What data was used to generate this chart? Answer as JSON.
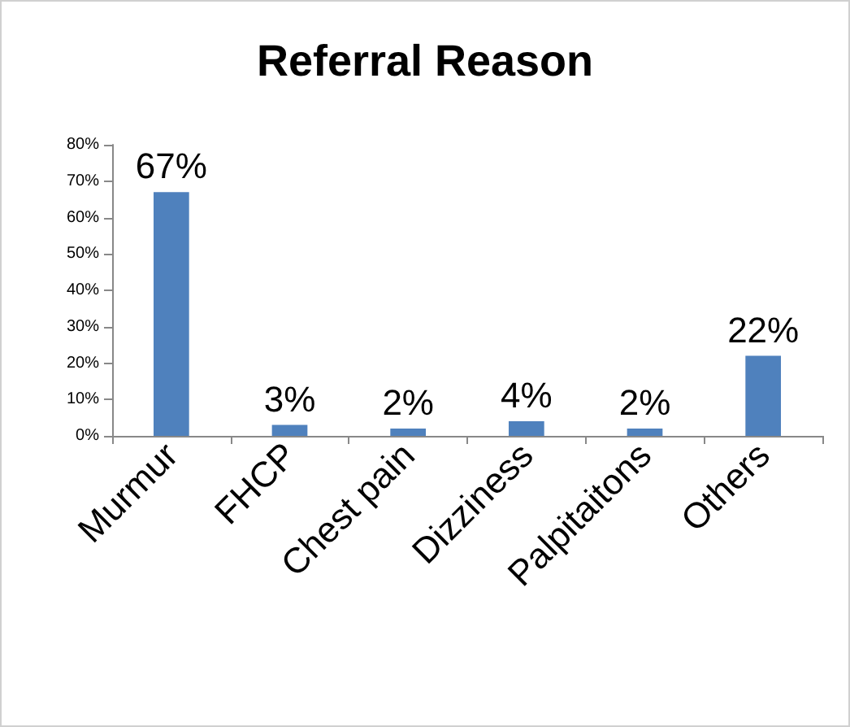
{
  "chart_data": {
    "type": "bar",
    "title": "Referral Reason",
    "categories": [
      "Murmur",
      "FHCP",
      "Chest pain",
      "Dizziness",
      "Palpitaitons",
      "Others"
    ],
    "values": [
      67,
      3,
      2,
      4,
      2,
      22
    ],
    "color": "#4f81bd",
    "value_labels": [
      "67%",
      "3%",
      "2%",
      "4%",
      "2%",
      "22%"
    ],
    "ylim": [
      0,
      80
    ],
    "yticks": [
      {
        "value": 0,
        "label": "0%"
      },
      {
        "value": 10,
        "label": "10%"
      },
      {
        "value": 20,
        "label": "20%"
      },
      {
        "value": 30,
        "label": "30%"
      },
      {
        "value": 40,
        "label": "40%"
      },
      {
        "value": 50,
        "label": "50%"
      },
      {
        "value": 60,
        "label": "60%"
      },
      {
        "value": 70,
        "label": "70%"
      },
      {
        "value": 80,
        "label": "80%"
      }
    ],
    "grid": false
  }
}
